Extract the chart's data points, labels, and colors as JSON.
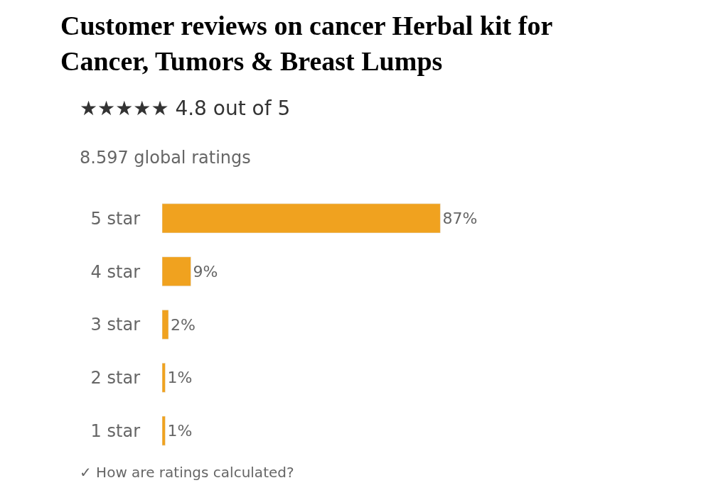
{
  "chart_data": {
    "type": "bar",
    "orientation": "horizontal",
    "title": "Customer reviews on cancer Herbal kit for\nCancer, Tumors & Breast Lumps",
    "subtitle": "★★★★★ 4.8 out of 5",
    "annotations": [
      "8.597 global ratings",
      "✓ How are ratings calculated?"
    ],
    "categories": [
      "5 star",
      "4 star",
      "3 star",
      "2 star",
      "1 star"
    ],
    "values": [
      87,
      9,
      2,
      1,
      1
    ],
    "value_labels": [
      "87%",
      "9%",
      "2%",
      "1%",
      "1%"
    ],
    "color": "#f0a21f",
    "tick_labels": "y",
    "legend": false
  }
}
